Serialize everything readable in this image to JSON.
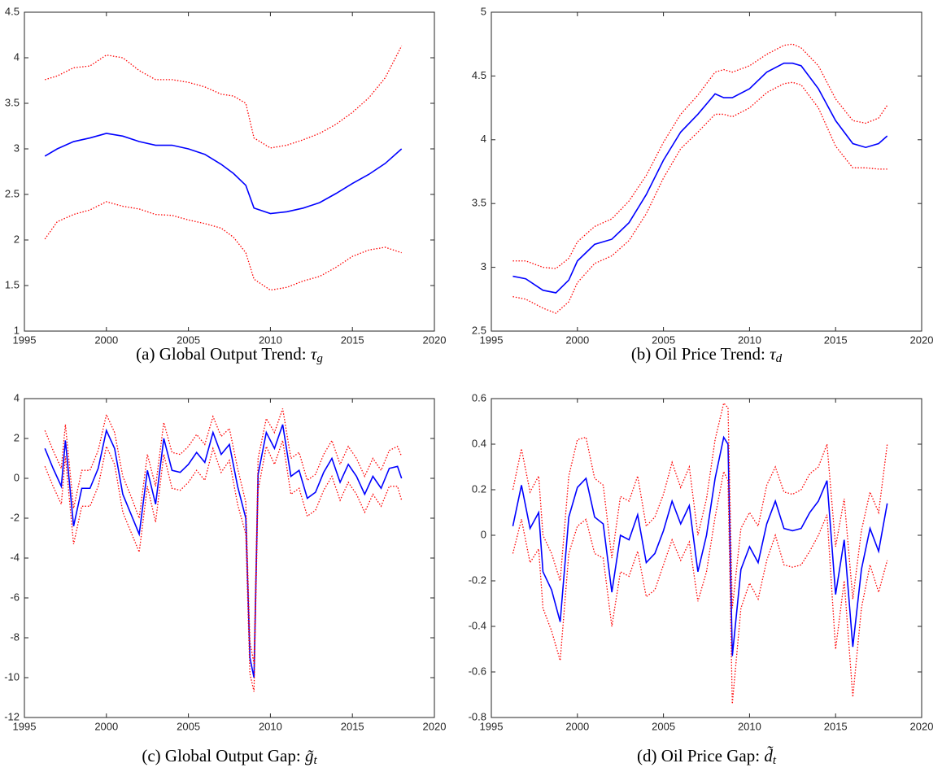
{
  "chart_data": [
    {
      "type": "line",
      "caption": "(a) Global Output Trend: ",
      "caption_math": "τ",
      "caption_sub": "g",
      "x": [
        1996.25,
        1997,
        1998,
        1999,
        2000,
        2001,
        2002,
        2003,
        2004,
        2005,
        2006,
        2007,
        2007.75,
        2008.5,
        2009,
        2010,
        2011,
        2012,
        2013,
        2014,
        2015,
        2016,
        2017,
        2018
      ],
      "series": [
        {
          "color": "#0000ff",
          "style": "solid",
          "values": [
            2.92,
            3.0,
            3.08,
            3.12,
            3.17,
            3.14,
            3.08,
            3.04,
            3.04,
            3.0,
            2.94,
            2.83,
            2.73,
            2.6,
            2.35,
            2.29,
            2.31,
            2.35,
            2.41,
            2.51,
            2.62,
            2.72,
            2.84,
            3.0
          ]
        },
        {
          "color": "#ff0000",
          "style": "dotted",
          "values": [
            3.76,
            3.8,
            3.89,
            3.91,
            4.03,
            4.0,
            3.86,
            3.76,
            3.76,
            3.73,
            3.68,
            3.6,
            3.58,
            3.5,
            3.12,
            3.01,
            3.04,
            3.1,
            3.17,
            3.27,
            3.4,
            3.56,
            3.78,
            4.13
          ]
        },
        {
          "color": "#ff0000",
          "style": "dotted",
          "values": [
            2.01,
            2.2,
            2.28,
            2.33,
            2.42,
            2.37,
            2.34,
            2.28,
            2.27,
            2.22,
            2.18,
            2.13,
            2.03,
            1.86,
            1.57,
            1.45,
            1.48,
            1.55,
            1.6,
            1.7,
            1.82,
            1.89,
            1.92,
            1.86
          ]
        }
      ],
      "xlim": [
        1995,
        2020
      ],
      "xticks": [
        1995,
        2000,
        2005,
        2010,
        2015,
        2020
      ],
      "ylim": [
        1,
        4.5
      ],
      "yticks": [
        1,
        1.5,
        2,
        2.5,
        3,
        3.5,
        4,
        4.5
      ]
    },
    {
      "type": "line",
      "caption": "(b) Oil Price Trend: ",
      "caption_math": "τ",
      "caption_sub": "d",
      "x": [
        1996.25,
        1997,
        1998,
        1998.75,
        1999.5,
        2000,
        2001,
        2002,
        2003,
        2004,
        2005,
        2006,
        2007,
        2008,
        2008.5,
        2009,
        2010,
        2011,
        2012,
        2012.5,
        2013,
        2014,
        2015,
        2016,
        2016.75,
        2017.5,
        2018
      ],
      "series": [
        {
          "color": "#0000ff",
          "style": "solid",
          "values": [
            2.93,
            2.91,
            2.82,
            2.8,
            2.9,
            3.05,
            3.18,
            3.22,
            3.35,
            3.57,
            3.84,
            4.06,
            4.2,
            4.36,
            4.33,
            4.33,
            4.4,
            4.53,
            4.6,
            4.6,
            4.58,
            4.4,
            4.15,
            3.97,
            3.94,
            3.97,
            4.03
          ]
        },
        {
          "color": "#ff0000",
          "style": "dotted",
          "values": [
            3.05,
            3.05,
            3.0,
            2.99,
            3.07,
            3.2,
            3.32,
            3.38,
            3.52,
            3.72,
            3.98,
            4.2,
            4.35,
            4.53,
            4.55,
            4.53,
            4.58,
            4.67,
            4.74,
            4.75,
            4.72,
            4.58,
            4.32,
            4.15,
            4.13,
            4.17,
            4.27
          ]
        },
        {
          "color": "#ff0000",
          "style": "dotted",
          "values": [
            2.77,
            2.75,
            2.68,
            2.64,
            2.73,
            2.88,
            3.03,
            3.09,
            3.21,
            3.42,
            3.7,
            3.93,
            4.06,
            4.2,
            4.2,
            4.18,
            4.25,
            4.37,
            4.44,
            4.45,
            4.43,
            4.25,
            3.95,
            3.78,
            3.78,
            3.77,
            3.77
          ]
        }
      ],
      "xlim": [
        1995,
        2020
      ],
      "xticks": [
        1995,
        2000,
        2005,
        2010,
        2015,
        2020
      ],
      "ylim": [
        2.5,
        5
      ],
      "yticks": [
        2.5,
        3,
        3.5,
        4,
        4.5,
        5
      ]
    },
    {
      "type": "line",
      "caption": "(c) Global Output Gap: ",
      "caption_math": "g̃",
      "caption_sub": "t",
      "x": [
        1996.25,
        1996.75,
        1997.25,
        1997.5,
        1998,
        1998.5,
        1999,
        1999.5,
        2000,
        2000.5,
        2001,
        2001.5,
        2002,
        2002.5,
        2003,
        2003.5,
        2004,
        2004.5,
        2005,
        2005.5,
        2006,
        2006.5,
        2007,
        2007.5,
        2008,
        2008.5,
        2008.75,
        2009,
        2009.25,
        2009.75,
        2010.25,
        2010.75,
        2011.25,
        2011.75,
        2012.25,
        2012.75,
        2013.25,
        2013.75,
        2014.25,
        2014.75,
        2015.25,
        2015.75,
        2016.25,
        2016.75,
        2017.25,
        2017.75,
        2018
      ],
      "series": [
        {
          "color": "#0000ff",
          "style": "solid",
          "values": [
            1.5,
            0.5,
            -0.4,
            1.9,
            -2.4,
            -0.5,
            -0.5,
            0.5,
            2.4,
            1.5,
            -0.8,
            -1.8,
            -2.8,
            0.4,
            -1.3,
            2.0,
            0.4,
            0.3,
            0.7,
            1.3,
            0.8,
            2.3,
            1.2,
            1.7,
            -0.4,
            -2.0,
            -9.0,
            -10.0,
            0.2,
            2.3,
            1.5,
            2.7,
            0.1,
            0.4,
            -1.0,
            -0.7,
            0.3,
            1.0,
            -0.2,
            0.7,
            0.1,
            -0.8,
            0.1,
            -0.5,
            0.5,
            0.6,
            0.0
          ]
        },
        {
          "color": "#ff0000",
          "style": "dotted",
          "values": [
            2.4,
            1.4,
            0.5,
            2.7,
            -1.5,
            0.4,
            0.4,
            1.4,
            3.2,
            2.3,
            0.1,
            -0.9,
            -2.0,
            1.2,
            -0.4,
            2.8,
            1.3,
            1.2,
            1.6,
            2.2,
            1.7,
            3.1,
            2.1,
            2.5,
            0.5,
            -1.2,
            -8.2,
            -9.3,
            1.0,
            3.0,
            2.3,
            3.5,
            1.0,
            1.3,
            -0.1,
            0.2,
            1.2,
            1.9,
            0.7,
            1.6,
            1.0,
            0.1,
            1.0,
            0.4,
            1.4,
            1.6,
            1.1
          ]
        },
        {
          "color": "#ff0000",
          "style": "dotted",
          "values": [
            0.6,
            -0.4,
            -1.3,
            1.1,
            -3.3,
            -1.4,
            -1.4,
            -0.4,
            1.6,
            0.7,
            -1.7,
            -2.7,
            -3.7,
            -0.4,
            -2.2,
            1.2,
            -0.5,
            -0.6,
            -0.2,
            0.4,
            -0.1,
            1.5,
            0.3,
            0.9,
            -1.3,
            -2.8,
            -9.8,
            -10.7,
            -0.6,
            1.6,
            0.7,
            1.9,
            -0.8,
            -0.5,
            -1.9,
            -1.6,
            -0.6,
            0.1,
            -1.1,
            -0.2,
            -0.8,
            -1.7,
            -0.8,
            -1.4,
            -0.4,
            -0.4,
            -1.1
          ]
        }
      ],
      "xlim": [
        1995,
        2020
      ],
      "xticks": [
        1995,
        2000,
        2005,
        2010,
        2015,
        2020
      ],
      "ylim": [
        -12,
        4
      ],
      "yticks": [
        -12,
        -10,
        -8,
        -6,
        -4,
        -2,
        0,
        2,
        4
      ]
    },
    {
      "type": "line",
      "caption": "(d) Oil Price Gap: ",
      "caption_math": "d̃",
      "caption_sub": "t",
      "x": [
        1996.25,
        1996.75,
        1997.25,
        1997.75,
        1998,
        1998.5,
        1999,
        1999.5,
        2000,
        2000.5,
        2001,
        2001.5,
        2002,
        2002.5,
        2003,
        2003.5,
        2004,
        2004.5,
        2005,
        2005.5,
        2006,
        2006.5,
        2007,
        2007.5,
        2008,
        2008.5,
        2008.75,
        2009,
        2009.5,
        2010,
        2010.5,
        2011,
        2011.5,
        2012,
        2012.5,
        2013,
        2013.5,
        2014,
        2014.5,
        2015,
        2015.5,
        2016,
        2016.5,
        2017,
        2017.5,
        2018
      ],
      "series": [
        {
          "color": "#0000ff",
          "style": "solid",
          "values": [
            0.04,
            0.22,
            0.03,
            0.1,
            -0.16,
            -0.24,
            -0.38,
            0.08,
            0.21,
            0.25,
            0.08,
            0.05,
            -0.25,
            0.0,
            -0.02,
            0.09,
            -0.12,
            -0.08,
            0.02,
            0.15,
            0.05,
            0.13,
            -0.16,
            0.0,
            0.25,
            0.43,
            0.4,
            -0.53,
            -0.15,
            -0.05,
            -0.12,
            0.05,
            0.15,
            0.03,
            0.02,
            0.03,
            0.1,
            0.15,
            0.24,
            -0.26,
            -0.02,
            -0.49,
            -0.15,
            0.03,
            -0.07,
            0.14
          ]
        },
        {
          "color": "#ff0000",
          "style": "dotted",
          "values": [
            0.2,
            0.38,
            0.19,
            0.26,
            0.0,
            -0.08,
            -0.2,
            0.26,
            0.42,
            0.43,
            0.25,
            0.22,
            -0.1,
            0.17,
            0.15,
            0.26,
            0.04,
            0.08,
            0.18,
            0.32,
            0.21,
            0.3,
            0.0,
            0.16,
            0.42,
            0.58,
            0.56,
            -0.32,
            0.03,
            0.1,
            0.04,
            0.22,
            0.3,
            0.19,
            0.18,
            0.2,
            0.27,
            0.3,
            0.4,
            -0.05,
            0.16,
            -0.28,
            0.02,
            0.19,
            0.1,
            0.4
          ]
        },
        {
          "color": "#ff0000",
          "style": "dotted",
          "values": [
            -0.08,
            0.07,
            -0.12,
            -0.06,
            -0.32,
            -0.42,
            -0.55,
            -0.08,
            0.04,
            0.07,
            -0.08,
            -0.1,
            -0.4,
            -0.16,
            -0.18,
            -0.07,
            -0.27,
            -0.24,
            -0.13,
            -0.02,
            -0.11,
            -0.03,
            -0.29,
            -0.16,
            0.08,
            0.28,
            0.24,
            -0.74,
            -0.32,
            -0.21,
            -0.28,
            -0.11,
            0.0,
            -0.13,
            -0.14,
            -0.13,
            -0.07,
            0.0,
            0.09,
            -0.5,
            -0.2,
            -0.71,
            -0.32,
            -0.13,
            -0.25,
            -0.11
          ]
        }
      ],
      "xlim": [
        1995,
        2020
      ],
      "xticks": [
        1995,
        2000,
        2005,
        2010,
        2015,
        2020
      ],
      "ylim": [
        -0.8,
        0.6
      ],
      "yticks": [
        -0.8,
        -0.6,
        -0.4,
        -0.2,
        0,
        0.2,
        0.4,
        0.6
      ]
    }
  ]
}
